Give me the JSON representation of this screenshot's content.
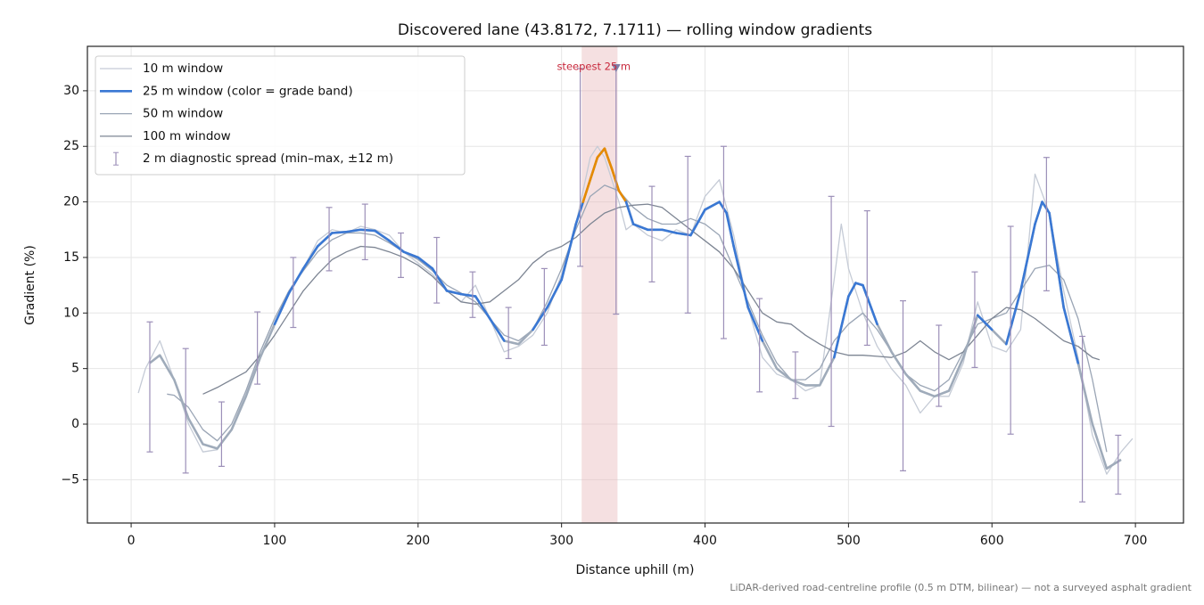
{
  "chart_data": {
    "type": "line",
    "title": "Discovered lane (43.8172, 7.1711) — rolling window gradients",
    "xlabel": "Distance uphill (m)",
    "ylabel": "Gradient (%)",
    "footnote": "LiDAR-derived road-centreline profile (0.5 m DTM, bilinear) — not a surveyed asphalt gradient",
    "xlim": [
      -30.5,
      733.5
    ],
    "ylim": [
      -8.9,
      34.0
    ],
    "xticks": [
      0,
      100,
      200,
      300,
      400,
      500,
      600,
      700
    ],
    "yticks": [
      {
        "value": -5,
        "label": "−5"
      },
      0,
      5,
      10,
      15,
      20,
      25,
      30
    ],
    "grid": true,
    "legend": "upper left",
    "series": [
      {
        "name": "10 m window",
        "color": "#c5cbd6",
        "width": 1.3,
        "x": [
          5,
          10,
          20,
          30,
          40,
          50,
          60,
          70,
          80,
          90,
          100,
          110,
          120,
          130,
          140,
          150,
          160,
          170,
          180,
          190,
          200,
          210,
          220,
          230,
          240,
          250,
          260,
          270,
          280,
          290,
          300,
          310,
          320,
          325,
          330,
          335,
          340,
          345,
          350,
          360,
          370,
          380,
          390,
          400,
          410,
          420,
          430,
          440,
          450,
          460,
          470,
          480,
          490,
          495,
          500,
          510,
          520,
          530,
          540,
          550,
          560,
          570,
          580,
          590,
          600,
          610,
          620,
          630,
          640,
          650,
          660,
          670,
          680,
          690,
          698
        ],
        "values": [
          2.8,
          5,
          7.5,
          4,
          0,
          -2.5,
          -2.3,
          -0.5,
          3,
          6.5,
          9.5,
          12,
          14,
          16.5,
          17.5,
          17.2,
          17.8,
          17.5,
          17,
          15.5,
          14.5,
          13.5,
          12,
          11,
          12.5,
          9.5,
          6.5,
          7,
          8,
          10,
          13.5,
          18,
          24,
          25,
          24,
          22,
          20,
          17.5,
          18,
          17,
          16.5,
          17.5,
          17,
          20.5,
          22,
          17,
          10.5,
          6,
          4.5,
          4,
          3,
          3.5,
          13,
          18,
          14,
          10,
          7,
          5,
          3.5,
          1,
          2.5,
          2.5,
          5.5,
          11,
          7,
          6.5,
          8.5,
          22.5,
          19,
          12,
          6,
          -1,
          -4.5,
          -2.5,
          -1.3
        ]
      },
      {
        "name": "25 m window (color = grade band)",
        "color": "#3a78d4",
        "width": 2.6,
        "base_color": "#9fabba",
        "grade_bands": [
          {
            "from": 8,
            "color": "#3a78d4"
          },
          {
            "from": 20,
            "color": "#e68a00"
          }
        ],
        "x": [
          13,
          20,
          30,
          40,
          50,
          60,
          70,
          80,
          90,
          100,
          110,
          120,
          130,
          140,
          150,
          160,
          170,
          180,
          190,
          200,
          210,
          220,
          230,
          240,
          250,
          260,
          270,
          280,
          290,
          300,
          310,
          315,
          320,
          325,
          330,
          335,
          340,
          345,
          350,
          360,
          370,
          380,
          390,
          400,
          410,
          415,
          420,
          430,
          440,
          450,
          460,
          470,
          480,
          490,
          500,
          505,
          510,
          520,
          530,
          540,
          550,
          560,
          570,
          580,
          590,
          600,
          610,
          620,
          630,
          635,
          640,
          650,
          660,
          670,
          680,
          690
        ],
        "values": [
          5.5,
          6.2,
          4,
          0.5,
          -1.8,
          -2.2,
          -0.5,
          2.5,
          6,
          9,
          11.8,
          14,
          16,
          17.2,
          17.3,
          17.5,
          17.4,
          16.5,
          15.5,
          15,
          14,
          12,
          11.7,
          11.5,
          9.5,
          7.5,
          7.2,
          8.5,
          10.5,
          13,
          18,
          20,
          22,
          24,
          24.8,
          23,
          21,
          20,
          18,
          17.5,
          17.5,
          17.2,
          17,
          19.3,
          20,
          19,
          16,
          10.5,
          7.5,
          5,
          4,
          3.5,
          3.5,
          6,
          11.5,
          12.7,
          12.5,
          9,
          6.5,
          4.5,
          3,
          2.5,
          3,
          6,
          9.8,
          8.5,
          7.2,
          12,
          18,
          20,
          19,
          10.5,
          5.5,
          0,
          -4,
          -3.2
        ]
      },
      {
        "name": "50 m window",
        "color": "#9aa5b5",
        "width": 1.3,
        "x": [
          25,
          30,
          40,
          50,
          60,
          70,
          80,
          90,
          100,
          110,
          120,
          130,
          140,
          150,
          160,
          170,
          180,
          190,
          200,
          210,
          220,
          230,
          240,
          250,
          260,
          270,
          280,
          290,
          300,
          310,
          320,
          330,
          340,
          350,
          360,
          370,
          380,
          390,
          400,
          410,
          420,
          430,
          440,
          450,
          460,
          470,
          480,
          490,
          500,
          510,
          520,
          530,
          540,
          550,
          560,
          570,
          580,
          590,
          600,
          610,
          620,
          630,
          640,
          650,
          660,
          670,
          680
        ],
        "values": [
          2.7,
          2.6,
          1.5,
          -0.5,
          -1.5,
          0,
          3,
          6.5,
          9.5,
          12,
          13.8,
          15.5,
          16.6,
          17.2,
          17.2,
          17,
          16.3,
          15.5,
          14.8,
          13.8,
          12.5,
          11.8,
          11,
          9.5,
          8,
          7.5,
          8.5,
          11,
          14,
          17.5,
          20.5,
          21.5,
          21,
          19.5,
          18.5,
          18,
          18,
          18.5,
          18,
          17,
          14,
          11,
          8,
          5.5,
          4,
          4,
          5,
          7.5,
          9,
          10,
          8.5,
          6.5,
          4.5,
          3.5,
          3,
          4,
          6.5,
          9,
          9.5,
          10,
          12,
          14,
          14.3,
          13,
          9.5,
          4,
          -2.5
        ]
      },
      {
        "name": "100 m window",
        "color": "#7d8593",
        "width": 1.3,
        "x": [
          50,
          60,
          70,
          80,
          90,
          100,
          110,
          120,
          130,
          140,
          150,
          160,
          170,
          180,
          190,
          200,
          210,
          220,
          230,
          240,
          250,
          260,
          270,
          280,
          290,
          300,
          310,
          320,
          330,
          340,
          350,
          360,
          370,
          380,
          390,
          400,
          410,
          420,
          430,
          440,
          450,
          460,
          470,
          480,
          490,
          500,
          510,
          520,
          530,
          540,
          550,
          560,
          570,
          580,
          590,
          600,
          610,
          620,
          630,
          640,
          650,
          660,
          670,
          675
        ],
        "values": [
          2.7,
          3.3,
          4,
          4.7,
          6.2,
          8,
          10,
          12,
          13.5,
          14.8,
          15.5,
          16,
          15.9,
          15.5,
          15,
          14.3,
          13.3,
          12,
          11,
          10.8,
          11,
          12,
          13,
          14.5,
          15.5,
          16,
          16.8,
          18,
          19,
          19.5,
          19.7,
          19.8,
          19.5,
          18.5,
          17.5,
          16.5,
          15.5,
          14,
          12,
          10,
          9.2,
          9,
          8,
          7.2,
          6.5,
          6.2,
          6.2,
          6.1,
          6,
          6.5,
          7.5,
          6.5,
          5.8,
          6.5,
          8,
          9.5,
          10.5,
          10.3,
          9.5,
          8.5,
          7.5,
          7,
          6,
          5.8
        ]
      }
    ],
    "errorbars": {
      "name": "2 m diagnostic spread (min–max, ±12 m)",
      "color": "#9c8fb8",
      "x": [
        13,
        38,
        63,
        88,
        113,
        138,
        163,
        188,
        213,
        238,
        263,
        288,
        313,
        338,
        363,
        388,
        413,
        438,
        463,
        488,
        513,
        538,
        563,
        588,
        613,
        638,
        663,
        688
      ],
      "low": [
        -2.5,
        -4.4,
        -3.8,
        3.6,
        8.7,
        13.8,
        14.8,
        13.2,
        10.9,
        9.6,
        5.9,
        7.1,
        14.2,
        9.9,
        12.8,
        10,
        7.7,
        2.9,
        2.3,
        -0.2,
        7.1,
        -4.2,
        1.6,
        5.1,
        -0.9,
        12,
        -7,
        -6.3
      ],
      "high": [
        9.2,
        6.8,
        2,
        10.1,
        15,
        19.5,
        19.8,
        17.2,
        16.8,
        13.7,
        10.5,
        14,
        32,
        32.2,
        21.4,
        24.1,
        25,
        11.3,
        6.5,
        20.5,
        19.2,
        11.1,
        8.9,
        13.7,
        17.8,
        24,
        7.9,
        -1
      ]
    },
    "span": {
      "x": [
        314,
        339
      ],
      "color": "#e8b4b8"
    },
    "peak": {
      "x": 338,
      "y": 32,
      "label": "steepest 25 m",
      "color": "#c8283c",
      "marker_color": "#7d7fa8"
    }
  }
}
